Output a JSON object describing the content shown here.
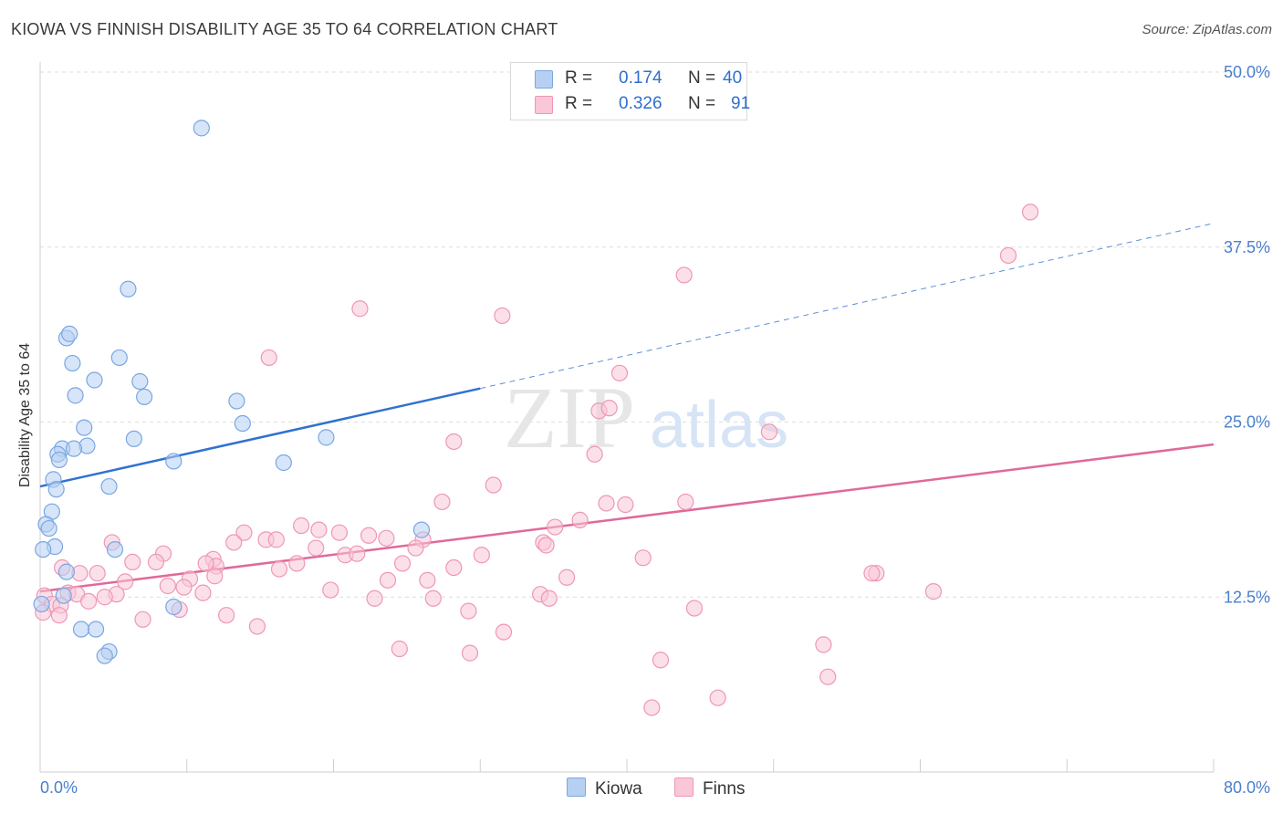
{
  "title": "KIOWA VS FINNISH DISABILITY AGE 35 TO 64 CORRELATION CHART",
  "source": "Source: ZipAtlas.com",
  "watermark": {
    "zip": "ZIP",
    "atlas": "atlas"
  },
  "legend": {
    "kiowa": {
      "r_label": "R =",
      "r_value": "0.174",
      "n_label": "N =",
      "n_value": "40"
    },
    "finns": {
      "r_label": "R =",
      "r_value": "0.326",
      "n_label": "N =",
      "n_value": "91"
    }
  },
  "bottom_legend": {
    "kiowa": "Kiowa",
    "finns": "Finns"
  },
  "colors": {
    "kiowa_fill": "#b7d0f2",
    "kiowa_stroke": "#7aa6e3",
    "kiowa_line": "#2f72d0",
    "finns_fill": "#f9c7d7",
    "finns_stroke": "#ee97b4",
    "finns_line": "#e0699a",
    "axis_label": "#4a7fcc"
  },
  "chart_data": {
    "type": "scatter",
    "title": "KIOWA VS FINNISH DISABILITY AGE 35 TO 64 CORRELATION CHART",
    "xlabel": "",
    "ylabel": "Disability Age 35 to 64",
    "xlim": [
      0,
      80
    ],
    "ylim": [
      0,
      50
    ],
    "x_tick_labels": [
      "0.0%",
      "80.0%"
    ],
    "y_ticks": [
      12.5,
      25.0,
      37.5,
      50.0
    ],
    "y_tick_labels": [
      "12.5%",
      "25.0%",
      "37.5%",
      "50.0%"
    ],
    "grid": true,
    "series": [
      {
        "name": "Kiowa",
        "r": 0.174,
        "n": 40,
        "trend": {
          "x0": 0,
          "y0": 20.4,
          "x1": 30,
          "y1": 27.4,
          "dashed_to_x": 80,
          "dashed_to_y": 39.2
        },
        "points": [
          [
            11.0,
            46.0
          ],
          [
            6.0,
            34.5
          ],
          [
            1.8,
            31.0
          ],
          [
            2.0,
            31.3
          ],
          [
            2.2,
            29.2
          ],
          [
            5.4,
            29.6
          ],
          [
            3.7,
            28.0
          ],
          [
            6.8,
            27.9
          ],
          [
            2.4,
            26.9
          ],
          [
            7.1,
            26.8
          ],
          [
            13.4,
            26.5
          ],
          [
            13.8,
            24.9
          ],
          [
            3.0,
            24.6
          ],
          [
            6.4,
            23.8
          ],
          [
            19.5,
            23.9
          ],
          [
            3.2,
            23.3
          ],
          [
            1.5,
            23.1
          ],
          [
            2.3,
            23.1
          ],
          [
            1.2,
            22.7
          ],
          [
            1.3,
            22.3
          ],
          [
            9.1,
            22.2
          ],
          [
            16.6,
            22.1
          ],
          [
            0.9,
            20.9
          ],
          [
            1.1,
            20.2
          ],
          [
            4.7,
            20.4
          ],
          [
            0.8,
            18.6
          ],
          [
            0.4,
            17.7
          ],
          [
            0.6,
            17.4
          ],
          [
            26.0,
            17.3
          ],
          [
            1.0,
            16.1
          ],
          [
            0.2,
            15.9
          ],
          [
            5.1,
            15.9
          ],
          [
            1.8,
            14.3
          ],
          [
            1.6,
            12.6
          ],
          [
            0.1,
            12.0
          ],
          [
            9.1,
            11.8
          ],
          [
            2.8,
            10.2
          ],
          [
            3.8,
            10.2
          ],
          [
            4.7,
            8.6
          ],
          [
            4.4,
            8.3
          ]
        ]
      },
      {
        "name": "Finns",
        "r": 0.326,
        "n": 91,
        "trend": {
          "x0": 0,
          "y0": 12.9,
          "x1": 80,
          "y1": 23.4
        },
        "points": [
          [
            67.5,
            40.0
          ],
          [
            66.0,
            36.9
          ],
          [
            43.9,
            35.5
          ],
          [
            21.8,
            33.1
          ],
          [
            31.5,
            32.6
          ],
          [
            15.6,
            29.6
          ],
          [
            39.5,
            28.5
          ],
          [
            38.1,
            25.8
          ],
          [
            38.8,
            26.0
          ],
          [
            49.7,
            24.3
          ],
          [
            28.2,
            23.6
          ],
          [
            37.8,
            22.7
          ],
          [
            30.9,
            20.5
          ],
          [
            27.4,
            19.3
          ],
          [
            38.6,
            19.2
          ],
          [
            39.9,
            19.1
          ],
          [
            44.0,
            19.3
          ],
          [
            36.8,
            18.0
          ],
          [
            35.1,
            17.5
          ],
          [
            17.8,
            17.6
          ],
          [
            19.0,
            17.3
          ],
          [
            20.4,
            17.1
          ],
          [
            13.9,
            17.1
          ],
          [
            22.4,
            16.9
          ],
          [
            23.6,
            16.7
          ],
          [
            15.4,
            16.6
          ],
          [
            16.1,
            16.6
          ],
          [
            13.2,
            16.4
          ],
          [
            34.3,
            16.4
          ],
          [
            26.1,
            16.6
          ],
          [
            34.5,
            16.2
          ],
          [
            18.8,
            16.0
          ],
          [
            25.6,
            16.0
          ],
          [
            4.9,
            16.4
          ],
          [
            8.4,
            15.6
          ],
          [
            20.8,
            15.5
          ],
          [
            21.6,
            15.6
          ],
          [
            30.1,
            15.5
          ],
          [
            41.1,
            15.3
          ],
          [
            11.8,
            15.2
          ],
          [
            7.9,
            15.0
          ],
          [
            6.3,
            15.0
          ],
          [
            17.5,
            14.9
          ],
          [
            24.7,
            14.9
          ],
          [
            12.0,
            14.7
          ],
          [
            11.3,
            14.9
          ],
          [
            16.3,
            14.5
          ],
          [
            1.5,
            14.6
          ],
          [
            2.7,
            14.2
          ],
          [
            11.9,
            14.0
          ],
          [
            3.9,
            14.2
          ],
          [
            28.2,
            14.6
          ],
          [
            26.4,
            13.7
          ],
          [
            35.9,
            13.9
          ],
          [
            10.2,
            13.8
          ],
          [
            23.7,
            13.7
          ],
          [
            5.8,
            13.6
          ],
          [
            8.7,
            13.3
          ],
          [
            57.0,
            14.2
          ],
          [
            56.7,
            14.2
          ],
          [
            9.8,
            13.2
          ],
          [
            19.8,
            13.0
          ],
          [
            60.9,
            12.9
          ],
          [
            11.1,
            12.8
          ],
          [
            34.1,
            12.7
          ],
          [
            0.3,
            12.6
          ],
          [
            1.9,
            12.8
          ],
          [
            2.5,
            12.7
          ],
          [
            5.2,
            12.7
          ],
          [
            4.4,
            12.5
          ],
          [
            22.8,
            12.4
          ],
          [
            26.8,
            12.4
          ],
          [
            34.7,
            12.4
          ],
          [
            0.8,
            12.0
          ],
          [
            3.3,
            12.2
          ],
          [
            1.4,
            11.9
          ],
          [
            9.5,
            11.6
          ],
          [
            29.2,
            11.5
          ],
          [
            44.6,
            11.7
          ],
          [
            0.2,
            11.4
          ],
          [
            1.3,
            11.2
          ],
          [
            12.7,
            11.2
          ],
          [
            7.0,
            10.9
          ],
          [
            14.8,
            10.4
          ],
          [
            31.6,
            10.0
          ],
          [
            24.5,
            8.8
          ],
          [
            29.3,
            8.5
          ],
          [
            53.4,
            9.1
          ],
          [
            42.3,
            8.0
          ],
          [
            53.7,
            6.8
          ],
          [
            46.2,
            5.3
          ],
          [
            41.7,
            4.6
          ]
        ]
      }
    ]
  }
}
